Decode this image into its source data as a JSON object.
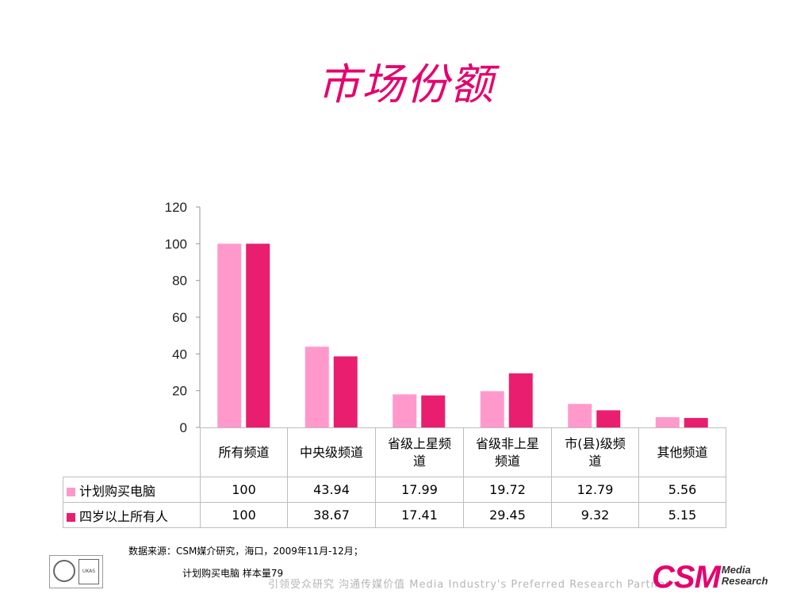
{
  "title": "市场份额",
  "chart_data": {
    "type": "bar",
    "categories": [
      "所有频道",
      "中央级频道",
      "省级上星频道",
      "省级非上星频道",
      "市(县)级频道",
      "其他频道"
    ],
    "category_lines": [
      [
        "所有频道"
      ],
      [
        "中央级频道"
      ],
      [
        "省级上星频",
        "道"
      ],
      [
        "省级非上星",
        "频道"
      ],
      [
        "市(县)级频",
        "道"
      ],
      [
        "其他频道"
      ]
    ],
    "series": [
      {
        "name": "计划购买电脑",
        "color": "#ff99cc",
        "values": [
          100,
          43.94,
          17.99,
          19.72,
          12.79,
          5.56
        ],
        "labels": [
          "100",
          "43.94",
          "17.99",
          "19.72",
          "12.79",
          "5.56"
        ]
      },
      {
        "name": "四岁以上所有人",
        "color": "#e91e6f",
        "values": [
          100,
          38.67,
          17.41,
          29.45,
          9.32,
          5.15
        ],
        "labels": [
          "100",
          "38.67",
          "17.41",
          "29.45",
          "9.32",
          "5.15"
        ]
      }
    ],
    "ylim": [
      0,
      120
    ],
    "yticks": [
      0,
      20,
      40,
      60,
      80,
      100,
      120
    ],
    "legend": "data-table"
  },
  "footer": {
    "source": "数据来源：CSM媒介研究，海口，2009年11月-12月；",
    "sample": "计划购买电脑 样本量79",
    "slogan": "引领受众研究 沟通传媒价值  Media Industry's Preferred Research Partner",
    "logo_main": "CSM",
    "logo_sub_1": "Media",
    "logo_sub_2": "Research",
    "cert_badge": "UKAS"
  }
}
